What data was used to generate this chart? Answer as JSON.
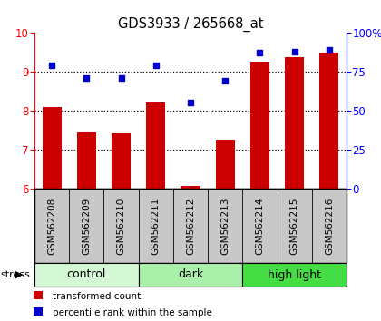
{
  "title": "GDS3933 / 265668_at",
  "samples": [
    "GSM562208",
    "GSM562209",
    "GSM562210",
    "GSM562211",
    "GSM562212",
    "GSM562213",
    "GSM562214",
    "GSM562215",
    "GSM562216"
  ],
  "bar_values": [
    8.1,
    7.45,
    7.42,
    8.22,
    6.08,
    7.25,
    9.25,
    9.38,
    9.5
  ],
  "dot_values": [
    79,
    71,
    71,
    79,
    55,
    69,
    87,
    88,
    89
  ],
  "ylim_left": [
    6,
    10
  ],
  "ylim_right": [
    0,
    100
  ],
  "yticks_left": [
    6,
    7,
    8,
    9,
    10
  ],
  "yticks_right": [
    0,
    25,
    50,
    75,
    100
  ],
  "bar_color": "#cc0000",
  "dot_color": "#0000cc",
  "bar_width": 0.55,
  "groups": [
    {
      "label": "control",
      "indices": [
        0,
        1,
        2
      ],
      "color": "#d4f7d4"
    },
    {
      "label": "dark",
      "indices": [
        3,
        4,
        5
      ],
      "color": "#aaf0aa"
    },
    {
      "label": "high light",
      "indices": [
        6,
        7,
        8
      ],
      "color": "#44dd44"
    }
  ],
  "stress_label": "stress",
  "legend_bar_label": "transformed count",
  "legend_dot_label": "percentile rank within the sample",
  "background_color": "#ffffff",
  "plot_bg_color": "#ffffff",
  "sample_bg_color": "#c8c8c8"
}
